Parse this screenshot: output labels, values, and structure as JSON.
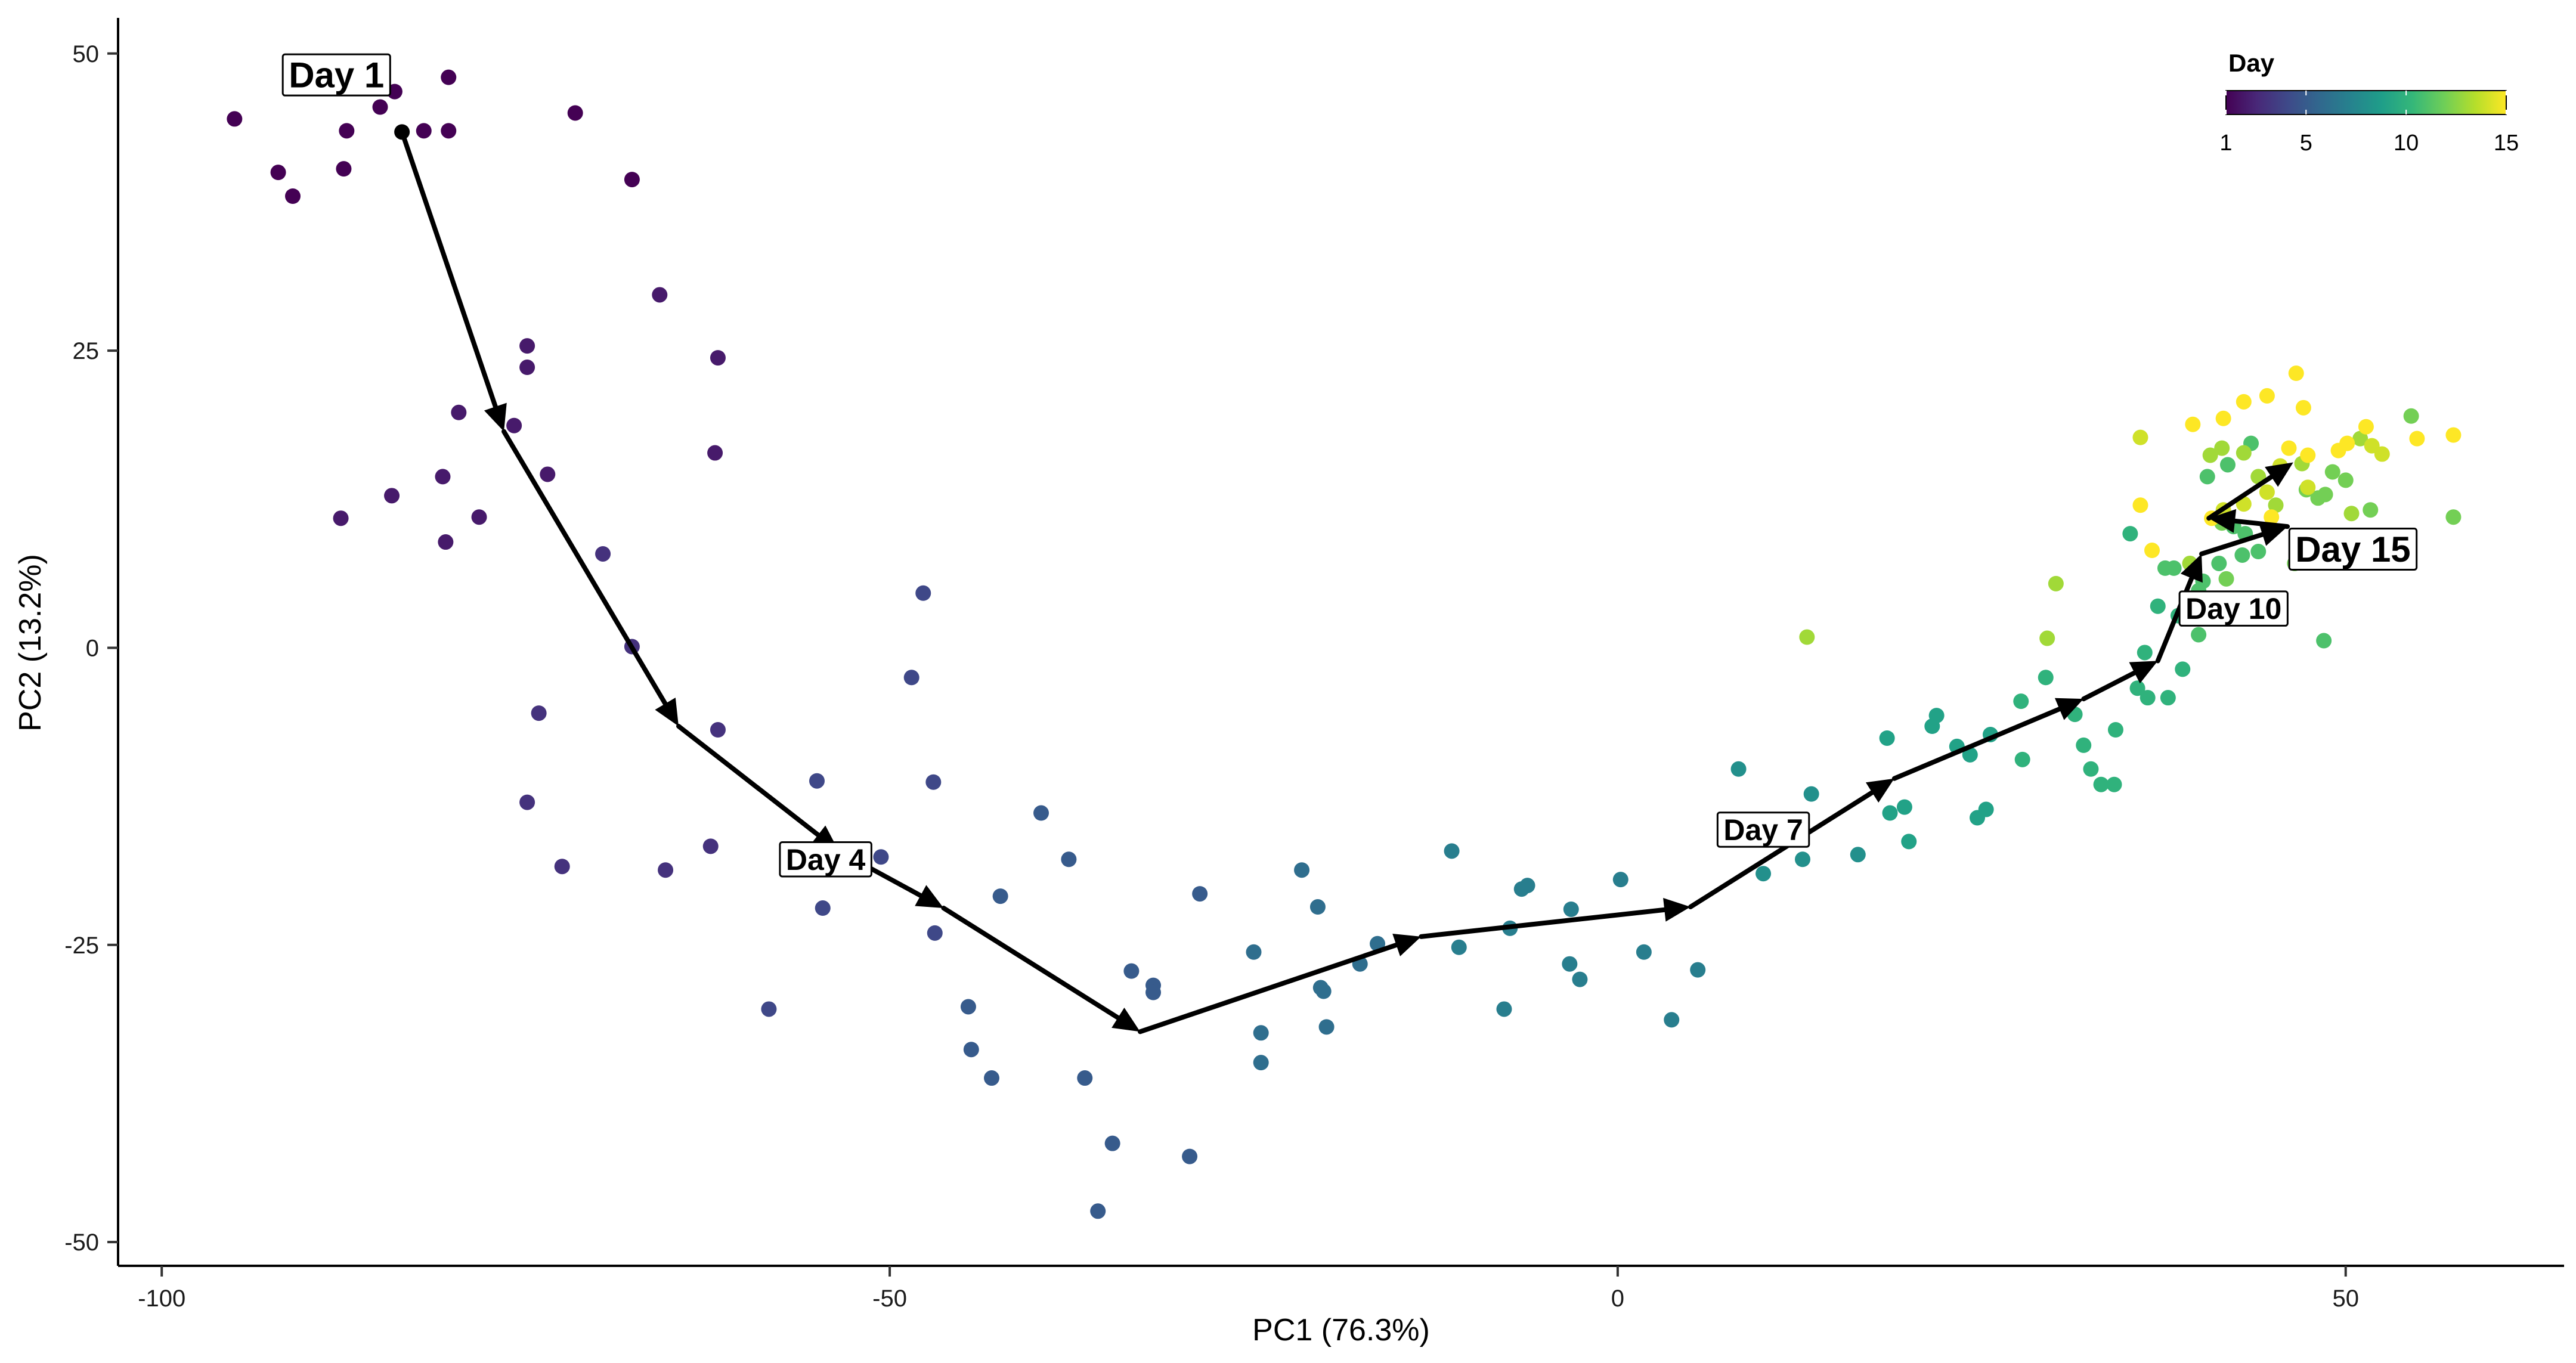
{
  "chart_data": {
    "type": "scatter",
    "xlabel": "PC1 (76.3%)",
    "ylabel": "PC2 (13.2%)",
    "xlim": [
      -103,
      65
    ],
    "ylim": [
      -52,
      53
    ],
    "x_ticks": [
      -100,
      -50,
      0,
      50
    ],
    "y_ticks": [
      -50,
      -25,
      0,
      25,
      50
    ],
    "grid": false,
    "legend": {
      "title": "Day",
      "type": "colorbar",
      "range": [
        1,
        15
      ],
      "ticks": [
        1,
        5,
        10,
        15
      ],
      "placement": "top-right",
      "colormap": [
        "#440154",
        "#482878",
        "#3e4a89",
        "#31688e",
        "#26828e",
        "#1f9e89",
        "#35b779",
        "#6ece58",
        "#b5de2b",
        "#fde725"
      ]
    },
    "points": [
      {
        "x": -95,
        "y": 44.5,
        "day": 1
      },
      {
        "x": -92,
        "y": 40,
        "day": 1
      },
      {
        "x": -91,
        "y": 38,
        "day": 1
      },
      {
        "x": -87.5,
        "y": 40.3,
        "day": 1
      },
      {
        "x": -87.3,
        "y": 43.5,
        "day": 1
      },
      {
        "x": -85,
        "y": 45.5,
        "day": 1
      },
      {
        "x": -84,
        "y": 46.8,
        "day": 1
      },
      {
        "x": -82,
        "y": 43.5,
        "day": 1
      },
      {
        "x": -80.3,
        "y": 48,
        "day": 1
      },
      {
        "x": -80.3,
        "y": 43.5,
        "day": 1
      },
      {
        "x": -71.6,
        "y": 45,
        "day": 1
      },
      {
        "x": -67.7,
        "y": 39.4,
        "day": 1
      },
      {
        "x": -65.8,
        "y": 29.7,
        "day": 2
      },
      {
        "x": -61.8,
        "y": 24.4,
        "day": 2
      },
      {
        "x": -62,
        "y": 16.4,
        "day": 2
      },
      {
        "x": -74.9,
        "y": 25.4,
        "day": 2
      },
      {
        "x": -74.9,
        "y": 23.6,
        "day": 2
      },
      {
        "x": -79.6,
        "y": 19.8,
        "day": 2
      },
      {
        "x": -75.8,
        "y": 18.7,
        "day": 2
      },
      {
        "x": -73.5,
        "y": 14.6,
        "day": 2
      },
      {
        "x": -84.2,
        "y": 12.8,
        "day": 2
      },
      {
        "x": -80.7,
        "y": 14.4,
        "day": 2
      },
      {
        "x": -78.2,
        "y": 11,
        "day": 2
      },
      {
        "x": -87.7,
        "y": 10.9,
        "day": 2
      },
      {
        "x": -80.5,
        "y": 8.9,
        "day": 2
      },
      {
        "x": -69.7,
        "y": 7.9,
        "day": 3
      },
      {
        "x": -67.7,
        "y": 0.1,
        "day": 3
      },
      {
        "x": -74.1,
        "y": -5.5,
        "day": 3
      },
      {
        "x": -61.8,
        "y": -6.9,
        "day": 3
      },
      {
        "x": -74.9,
        "y": -13,
        "day": 3
      },
      {
        "x": -72.5,
        "y": -18.4,
        "day": 3
      },
      {
        "x": -65.4,
        "y": -18.7,
        "day": 3
      },
      {
        "x": -62.3,
        "y": -16.7,
        "day": 3
      },
      {
        "x": -47.7,
        "y": 4.6,
        "day": 4
      },
      {
        "x": -48.5,
        "y": -2.5,
        "day": 4
      },
      {
        "x": -47,
        "y": -11.3,
        "day": 4
      },
      {
        "x": -55,
        "y": -11.2,
        "day": 4
      },
      {
        "x": -50.6,
        "y": -17.6,
        "day": 4
      },
      {
        "x": -54.6,
        "y": -21.9,
        "day": 4
      },
      {
        "x": -58.3,
        "y": -30.4,
        "day": 4
      },
      {
        "x": -46.9,
        "y": -24,
        "day": 4
      },
      {
        "x": -44.6,
        "y": -30.2,
        "day": 5
      },
      {
        "x": -44.4,
        "y": -33.8,
        "day": 5
      },
      {
        "x": -43,
        "y": -36.2,
        "day": 5
      },
      {
        "x": -42.4,
        "y": -20.9,
        "day": 5
      },
      {
        "x": -39.6,
        "y": -13.9,
        "day": 5
      },
      {
        "x": -37.7,
        "y": -17.8,
        "day": 5
      },
      {
        "x": -35.7,
        "y": -47.4,
        "day": 5
      },
      {
        "x": -36.6,
        "y": -36.2,
        "day": 5
      },
      {
        "x": -34.7,
        "y": -41.7,
        "day": 5
      },
      {
        "x": -33.4,
        "y": -27.2,
        "day": 5
      },
      {
        "x": -31.9,
        "y": -28.4,
        "day": 5
      },
      {
        "x": -31.9,
        "y": -29,
        "day": 5
      },
      {
        "x": -29.4,
        "y": -42.8,
        "day": 5
      },
      {
        "x": -28.7,
        "y": -20.7,
        "day": 5
      },
      {
        "x": -25,
        "y": -25.6,
        "day": 6
      },
      {
        "x": -24.5,
        "y": -32.4,
        "day": 6
      },
      {
        "x": -24.5,
        "y": -34.9,
        "day": 6
      },
      {
        "x": -21.7,
        "y": -18.7,
        "day": 6
      },
      {
        "x": -20.6,
        "y": -21.8,
        "day": 6
      },
      {
        "x": -20.4,
        "y": -28.6,
        "day": 6
      },
      {
        "x": -20.2,
        "y": -28.9,
        "day": 6
      },
      {
        "x": -20,
        "y": -31.9,
        "day": 6
      },
      {
        "x": -17.7,
        "y": -26.6,
        "day": 6
      },
      {
        "x": -16.5,
        "y": -24.9,
        "day": 6
      },
      {
        "x": -11.4,
        "y": -17.1,
        "day": 7
      },
      {
        "x": -10.9,
        "y": -25.2,
        "day": 7
      },
      {
        "x": -7.8,
        "y": -30.4,
        "day": 7
      },
      {
        "x": -7.4,
        "y": -23.6,
        "day": 7
      },
      {
        "x": -6.6,
        "y": -20.3,
        "day": 7
      },
      {
        "x": -6.2,
        "y": -20,
        "day": 7
      },
      {
        "x": -3.2,
        "y": -22,
        "day": 7
      },
      {
        "x": -3.3,
        "y": -26.6,
        "day": 7
      },
      {
        "x": -2.6,
        "y": -27.9,
        "day": 7
      },
      {
        "x": 0.2,
        "y": -19.5,
        "day": 7
      },
      {
        "x": 1.8,
        "y": -25.6,
        "day": 7
      },
      {
        "x": 3.7,
        "y": -31.3,
        "day": 7
      },
      {
        "x": 5.5,
        "y": -27.1,
        "day": 7
      },
      {
        "x": 8.3,
        "y": -10.2,
        "day": 8
      },
      {
        "x": 10,
        "y": -19,
        "day": 8
      },
      {
        "x": 11.7,
        "y": -15.3,
        "day": 8
      },
      {
        "x": 12.7,
        "y": -17.8,
        "day": 8
      },
      {
        "x": 13.3,
        "y": -12.3,
        "day": 8
      },
      {
        "x": 16.5,
        "y": -17.4,
        "day": 8
      },
      {
        "x": 18.5,
        "y": -7.6,
        "day": 9
      },
      {
        "x": 18.7,
        "y": -13.9,
        "day": 9
      },
      {
        "x": 19.7,
        "y": -13.4,
        "day": 9
      },
      {
        "x": 20,
        "y": -16.3,
        "day": 9
      },
      {
        "x": 21.6,
        "y": -6.6,
        "day": 9
      },
      {
        "x": 21.9,
        "y": -5.7,
        "day": 9
      },
      {
        "x": 23.3,
        "y": -8.3,
        "day": 9
      },
      {
        "x": 24.2,
        "y": -9,
        "day": 9
      },
      {
        "x": 24.7,
        "y": -14.3,
        "day": 9
      },
      {
        "x": 25.3,
        "y": -13.6,
        "day": 9
      },
      {
        "x": 25.6,
        "y": -7.3,
        "day": 9
      },
      {
        "x": 27.7,
        "y": -4.5,
        "day": 10
      },
      {
        "x": 27.8,
        "y": -9.4,
        "day": 10
      },
      {
        "x": 29.4,
        "y": -2.5,
        "day": 10
      },
      {
        "x": 31.4,
        "y": -5.6,
        "day": 10
      },
      {
        "x": 32,
        "y": -8.2,
        "day": 10
      },
      {
        "x": 32.5,
        "y": -10.2,
        "day": 10
      },
      {
        "x": 33.2,
        "y": -11.5,
        "day": 10
      },
      {
        "x": 34.1,
        "y": -11.5,
        "day": 10
      },
      {
        "x": 34.2,
        "y": -6.9,
        "day": 10
      },
      {
        "x": 35.7,
        "y": -3.4,
        "day": 10
      },
      {
        "x": 36.4,
        "y": -4.2,
        "day": 10
      },
      {
        "x": 36.2,
        "y": -0.4,
        "day": 10
      },
      {
        "x": 37.1,
        "y": 3.5,
        "day": 10
      },
      {
        "x": 37.8,
        "y": -4.2,
        "day": 10
      },
      {
        "x": 38.5,
        "y": 2.7,
        "day": 10
      },
      {
        "x": 38.8,
        "y": -1.8,
        "day": 10
      },
      {
        "x": 35.2,
        "y": 9.6,
        "day": 10
      },
      {
        "x": 37.6,
        "y": 6.7,
        "day": 11
      },
      {
        "x": 38.2,
        "y": 6.7,
        "day": 11
      },
      {
        "x": 39.9,
        "y": 1.1,
        "day": 11
      },
      {
        "x": 39.9,
        "y": 4.8,
        "day": 11
      },
      {
        "x": 40.7,
        "y": 3.3,
        "day": 11
      },
      {
        "x": 40.2,
        "y": 5.6,
        "day": 11
      },
      {
        "x": 41.3,
        "y": 7.1,
        "day": 11
      },
      {
        "x": 42.9,
        "y": 7.8,
        "day": 11
      },
      {
        "x": 44,
        "y": 8.1,
        "day": 11
      },
      {
        "x": 42.3,
        "y": 10.2,
        "day": 11
      },
      {
        "x": 43.1,
        "y": 9.6,
        "day": 11
      },
      {
        "x": 40.5,
        "y": 14.4,
        "day": 11
      },
      {
        "x": 41.9,
        "y": 15.4,
        "day": 11
      },
      {
        "x": 43.5,
        "y": 17.2,
        "day": 11
      },
      {
        "x": 48.5,
        "y": 0.6,
        "day": 11
      },
      {
        "x": 46.5,
        "y": 7.1,
        "day": 12
      },
      {
        "x": 41.8,
        "y": 5.8,
        "day": 12
      },
      {
        "x": 41.5,
        "y": 10.5,
        "day": 12
      },
      {
        "x": 47.3,
        "y": 13.3,
        "day": 12
      },
      {
        "x": 48.1,
        "y": 12.6,
        "day": 12
      },
      {
        "x": 48.6,
        "y": 12.9,
        "day": 12
      },
      {
        "x": 49.1,
        "y": 14.8,
        "day": 12
      },
      {
        "x": 50,
        "y": 14.1,
        "day": 12
      },
      {
        "x": 51.7,
        "y": 11.6,
        "day": 12
      },
      {
        "x": 54.5,
        "y": 19.5,
        "day": 12
      },
      {
        "x": 57.4,
        "y": 11,
        "day": 12
      },
      {
        "x": 13,
        "y": 0.9,
        "day": 13
      },
      {
        "x": 29.5,
        "y": 0.8,
        "day": 13
      },
      {
        "x": 30.1,
        "y": 5.4,
        "day": 13
      },
      {
        "x": 39.3,
        "y": 7.1,
        "day": 13
      },
      {
        "x": 40.7,
        "y": 16.2,
        "day": 13
      },
      {
        "x": 41.5,
        "y": 16.8,
        "day": 13
      },
      {
        "x": 43,
        "y": 16.4,
        "day": 13
      },
      {
        "x": 44,
        "y": 14.4,
        "day": 13
      },
      {
        "x": 45.2,
        "y": 12,
        "day": 13
      },
      {
        "x": 47,
        "y": 15.5,
        "day": 13
      },
      {
        "x": 50.4,
        "y": 11.3,
        "day": 13
      },
      {
        "x": 51,
        "y": 17.6,
        "day": 13
      },
      {
        "x": 35.9,
        "y": 17.7,
        "day": 14
      },
      {
        "x": 41.6,
        "y": 11.6,
        "day": 14
      },
      {
        "x": 43,
        "y": 12.1,
        "day": 14
      },
      {
        "x": 44.6,
        "y": 13.1,
        "day": 14
      },
      {
        "x": 47.4,
        "y": 13.5,
        "day": 14
      },
      {
        "x": 51.8,
        "y": 17,
        "day": 14
      },
      {
        "x": 52.5,
        "y": 16.3,
        "day": 14
      },
      {
        "x": 45.5,
        "y": 15.3,
        "day": 14
      },
      {
        "x": 36.7,
        "y": 8.2,
        "day": 15
      },
      {
        "x": 35.9,
        "y": 12,
        "day": 15
      },
      {
        "x": 39.5,
        "y": 18.8,
        "day": 15
      },
      {
        "x": 40.8,
        "y": 10.9,
        "day": 15
      },
      {
        "x": 41.6,
        "y": 19.3,
        "day": 15
      },
      {
        "x": 43,
        "y": 20.7,
        "day": 15
      },
      {
        "x": 44.6,
        "y": 21.2,
        "day": 15
      },
      {
        "x": 44.9,
        "y": 11,
        "day": 15
      },
      {
        "x": 46.1,
        "y": 16.8,
        "day": 15
      },
      {
        "x": 47.1,
        "y": 20.2,
        "day": 15
      },
      {
        "x": 47.4,
        "y": 16.2,
        "day": 15
      },
      {
        "x": 46.6,
        "y": 23.1,
        "day": 15
      },
      {
        "x": 49.5,
        "y": 16.6,
        "day": 15
      },
      {
        "x": 50.1,
        "y": 17.2,
        "day": 15
      },
      {
        "x": 51.4,
        "y": 18.6,
        "day": 15
      },
      {
        "x": 54.9,
        "y": 17.6,
        "day": 15
      },
      {
        "x": 57.4,
        "y": 17.9,
        "day": 15
      }
    ],
    "trajectory": [
      {
        "day": 1,
        "x": -83.5,
        "y": 43.4
      },
      {
        "day": 2,
        "x": -76.5,
        "y": 18.2
      },
      {
        "day": 3,
        "x": -64.5,
        "y": -6.6
      },
      {
        "day": 4,
        "x": -53.5,
        "y": -17.1
      },
      {
        "day": 5,
        "x": -46.3,
        "y": -21.9
      },
      {
        "day": 6,
        "x": -32.8,
        "y": -32.3
      },
      {
        "day": 7,
        "x": -13.5,
        "y": -24.3
      },
      {
        "day": 8,
        "x": 5,
        "y": -21.8
      },
      {
        "day": 9,
        "x": 19,
        "y": -11
      },
      {
        "day": 10,
        "x": 32,
        "y": -4.3
      },
      {
        "day": 11,
        "x": 37.1,
        "y": -1.1
      },
      {
        "day": 12,
        "x": 40.1,
        "y": 7.9
      },
      {
        "day": 13,
        "x": 46,
        "y": 10.2
      },
      {
        "day": 14,
        "x": 40.6,
        "y": 10.9
      },
      {
        "day": 15,
        "x": 46.4,
        "y": 15.6
      }
    ],
    "annotations": [
      {
        "text": "Day 1",
        "x": -88,
        "y": 48.2,
        "size": "large"
      },
      {
        "text": "Day 4",
        "x": -54.4,
        "y": -17.8,
        "size": "small"
      },
      {
        "text": "Day 7",
        "x": 10,
        "y": -15.3,
        "size": "small"
      },
      {
        "text": "Day 10",
        "x": 42.3,
        "y": 3.3,
        "size": "small"
      },
      {
        "text": "Day 15",
        "x": 50.5,
        "y": 8.3,
        "size": "large"
      }
    ]
  }
}
